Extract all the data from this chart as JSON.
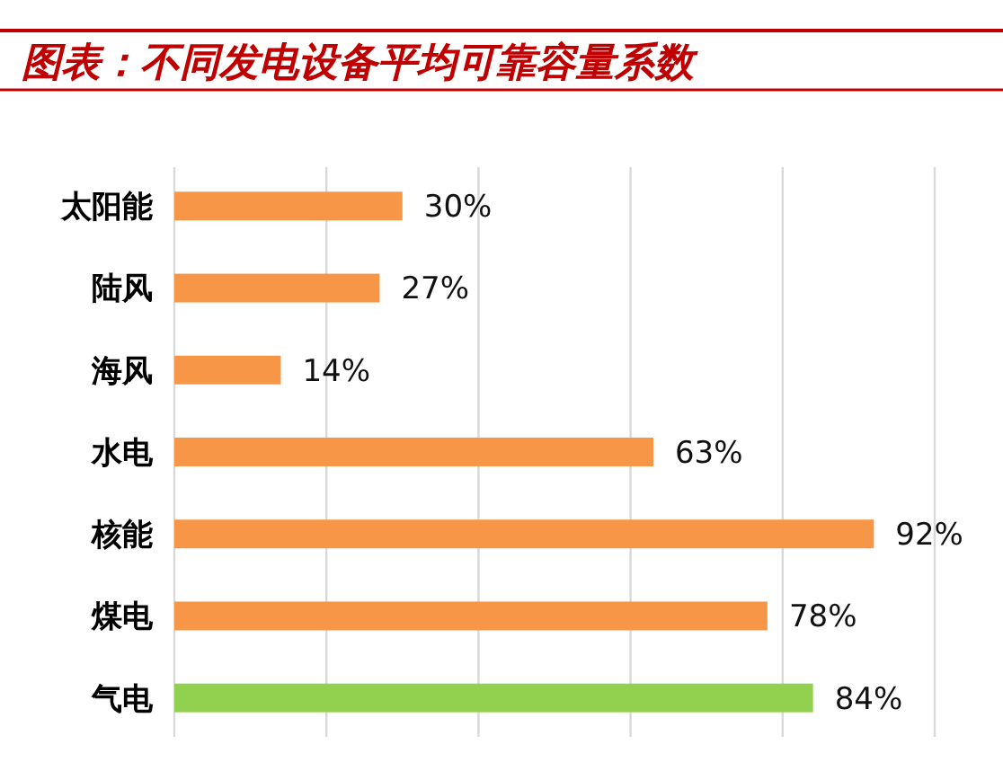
{
  "chart_data": {
    "type": "bar",
    "orientation": "horizontal",
    "title": "图表：不同发电设备平均可靠容量系数",
    "categories": [
      "太阳能",
      "陆风",
      "海风",
      "水电",
      "核能",
      "煤电",
      "气电"
    ],
    "values": [
      30,
      27,
      14,
      63,
      92,
      78,
      84
    ],
    "colors": [
      "#f79646",
      "#f79646",
      "#f79646",
      "#f79646",
      "#f79646",
      "#f79646",
      "#92d050"
    ],
    "value_labels": [
      "30%",
      "27%",
      "14%",
      "63%",
      "92%",
      "78%",
      "84%"
    ],
    "xlim": [
      0,
      100
    ],
    "xticks": [
      {
        "value": 0,
        "label": null
      },
      {
        "value": 20,
        "label": null
      },
      {
        "value": 40,
        "label": null
      },
      {
        "value": 60,
        "label": null
      },
      {
        "value": 80,
        "label": null
      },
      {
        "value": 100,
        "label": null
      }
    ],
    "grid": "x",
    "tick_labels": "y"
  }
}
